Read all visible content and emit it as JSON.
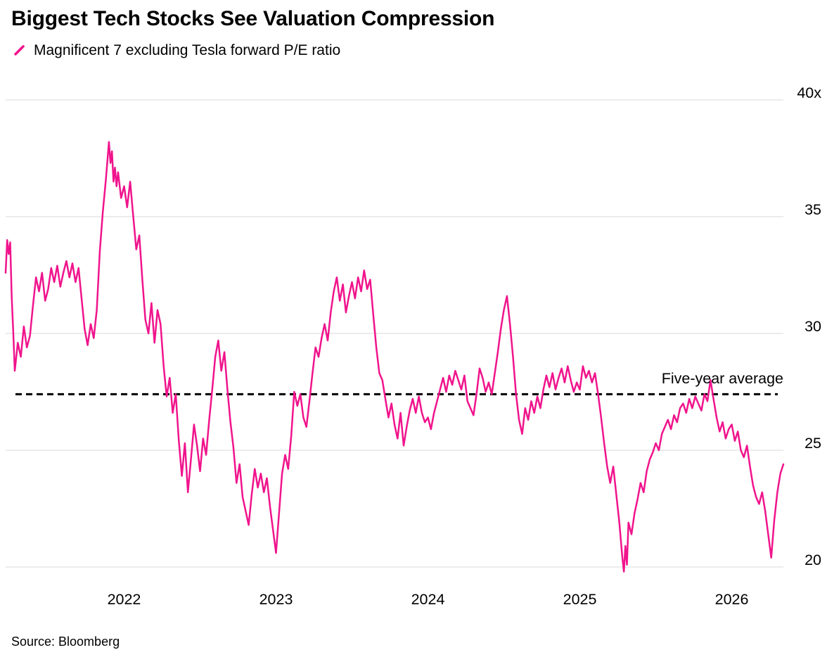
{
  "header": {
    "title": "Biggest Tech Stocks See Valuation Compression"
  },
  "legend": {
    "label": "Magnificent 7 excluding Tesla forward P/E ratio"
  },
  "source": {
    "text": "Source: Bloomberg"
  },
  "colors": {
    "series": "#f0148c",
    "average_line": "#000000",
    "grid": "#d9d9d9",
    "text": "#000000",
    "background": "#ffffff"
  },
  "chart_data": {
    "type": "line",
    "title": "Biggest Tech Stocks See Valuation Compression",
    "series_name": "Magnificent 7 excluding Tesla forward P/E ratio",
    "x_ticks": [
      2022,
      2023,
      2024,
      2025,
      2026
    ],
    "x_tick_labels": [
      "2022",
      "2023",
      "2024",
      "2025",
      "2026"
    ],
    "y_ticks": [
      40,
      35,
      30,
      25,
      20
    ],
    "y_tick_labels": [
      "40x",
      "35",
      "30",
      "25",
      "20"
    ],
    "x_range": [
      2021.22,
      2026.34
    ],
    "ylim": [
      20,
      40
    ],
    "grid": "horizontal",
    "legend_position": "top-left",
    "average_line": {
      "label": "Five-year average",
      "value": 27.4,
      "style": "dashed"
    },
    "points": [
      [
        2021.22,
        32.6
      ],
      [
        2021.23,
        34.0
      ],
      [
        2021.24,
        33.4
      ],
      [
        2021.25,
        33.9
      ],
      [
        2021.26,
        31.6
      ],
      [
        2021.27,
        30.1
      ],
      [
        2021.28,
        28.4
      ],
      [
        2021.3,
        29.6
      ],
      [
        2021.32,
        29.0
      ],
      [
        2021.34,
        30.3
      ],
      [
        2021.36,
        29.4
      ],
      [
        2021.38,
        29.9
      ],
      [
        2021.4,
        31.2
      ],
      [
        2021.42,
        32.4
      ],
      [
        2021.44,
        31.8
      ],
      [
        2021.46,
        32.6
      ],
      [
        2021.48,
        31.4
      ],
      [
        2021.5,
        31.9
      ],
      [
        2021.52,
        32.8
      ],
      [
        2021.54,
        32.2
      ],
      [
        2021.56,
        32.9
      ],
      [
        2021.58,
        32.0
      ],
      [
        2021.6,
        32.6
      ],
      [
        2021.62,
        33.1
      ],
      [
        2021.64,
        32.4
      ],
      [
        2021.66,
        33.0
      ],
      [
        2021.68,
        32.2
      ],
      [
        2021.7,
        32.8
      ],
      [
        2021.72,
        31.5
      ],
      [
        2021.74,
        30.2
      ],
      [
        2021.76,
        29.5
      ],
      [
        2021.78,
        30.4
      ],
      [
        2021.8,
        29.8
      ],
      [
        2021.82,
        31.0
      ],
      [
        2021.84,
        33.5
      ],
      [
        2021.86,
        35.2
      ],
      [
        2021.88,
        36.6
      ],
      [
        2021.9,
        38.2
      ],
      [
        2021.91,
        37.3
      ],
      [
        2021.92,
        37.8
      ],
      [
        2021.93,
        36.5
      ],
      [
        2021.94,
        37.1
      ],
      [
        2021.95,
        36.3
      ],
      [
        2021.96,
        36.9
      ],
      [
        2021.98,
        35.8
      ],
      [
        2022.0,
        36.3
      ],
      [
        2022.02,
        35.4
      ],
      [
        2022.04,
        36.5
      ],
      [
        2022.06,
        35.0
      ],
      [
        2022.08,
        33.6
      ],
      [
        2022.1,
        34.2
      ],
      [
        2022.12,
        32.3
      ],
      [
        2022.14,
        30.6
      ],
      [
        2022.16,
        30.0
      ],
      [
        2022.18,
        31.3
      ],
      [
        2022.2,
        29.6
      ],
      [
        2022.22,
        31.0
      ],
      [
        2022.24,
        30.4
      ],
      [
        2022.26,
        28.6
      ],
      [
        2022.28,
        27.3
      ],
      [
        2022.3,
        28.1
      ],
      [
        2022.32,
        26.6
      ],
      [
        2022.34,
        27.4
      ],
      [
        2022.36,
        25.4
      ],
      [
        2022.38,
        23.9
      ],
      [
        2022.4,
        25.3
      ],
      [
        2022.42,
        23.2
      ],
      [
        2022.44,
        24.6
      ],
      [
        2022.46,
        26.1
      ],
      [
        2022.48,
        25.2
      ],
      [
        2022.5,
        24.1
      ],
      [
        2022.52,
        25.5
      ],
      [
        2022.54,
        24.8
      ],
      [
        2022.56,
        26.3
      ],
      [
        2022.58,
        27.6
      ],
      [
        2022.6,
        29.0
      ],
      [
        2022.62,
        29.7
      ],
      [
        2022.64,
        28.4
      ],
      [
        2022.66,
        29.2
      ],
      [
        2022.68,
        27.6
      ],
      [
        2022.7,
        26.2
      ],
      [
        2022.72,
        25.1
      ],
      [
        2022.74,
        23.6
      ],
      [
        2022.76,
        24.4
      ],
      [
        2022.78,
        23.0
      ],
      [
        2022.8,
        22.4
      ],
      [
        2022.82,
        21.8
      ],
      [
        2022.84,
        23.1
      ],
      [
        2022.86,
        24.2
      ],
      [
        2022.88,
        23.4
      ],
      [
        2022.9,
        24.0
      ],
      [
        2022.92,
        23.2
      ],
      [
        2022.94,
        23.8
      ],
      [
        2022.96,
        22.6
      ],
      [
        2022.98,
        21.6
      ],
      [
        2023.0,
        20.6
      ],
      [
        2023.02,
        22.3
      ],
      [
        2023.04,
        24.0
      ],
      [
        2023.06,
        24.8
      ],
      [
        2023.08,
        24.2
      ],
      [
        2023.1,
        25.6
      ],
      [
        2023.12,
        27.5
      ],
      [
        2023.14,
        26.9
      ],
      [
        2023.16,
        27.4
      ],
      [
        2023.18,
        26.4
      ],
      [
        2023.2,
        26.0
      ],
      [
        2023.22,
        27.1
      ],
      [
        2023.24,
        28.3
      ],
      [
        2023.26,
        29.4
      ],
      [
        2023.28,
        29.0
      ],
      [
        2023.3,
        29.8
      ],
      [
        2023.32,
        30.4
      ],
      [
        2023.34,
        29.7
      ],
      [
        2023.36,
        30.9
      ],
      [
        2023.38,
        31.8
      ],
      [
        2023.4,
        32.4
      ],
      [
        2023.42,
        31.4
      ],
      [
        2023.44,
        32.1
      ],
      [
        2023.46,
        30.9
      ],
      [
        2023.48,
        31.6
      ],
      [
        2023.5,
        32.2
      ],
      [
        2023.52,
        31.5
      ],
      [
        2023.54,
        32.4
      ],
      [
        2023.56,
        31.8
      ],
      [
        2023.58,
        32.7
      ],
      [
        2023.6,
        31.9
      ],
      [
        2023.62,
        32.3
      ],
      [
        2023.64,
        30.8
      ],
      [
        2023.66,
        29.4
      ],
      [
        2023.68,
        28.3
      ],
      [
        2023.7,
        28.0
      ],
      [
        2023.72,
        27.2
      ],
      [
        2023.74,
        26.4
      ],
      [
        2023.76,
        27.0
      ],
      [
        2023.78,
        26.1
      ],
      [
        2023.8,
        25.5
      ],
      [
        2023.82,
        26.6
      ],
      [
        2023.84,
        25.2
      ],
      [
        2023.86,
        26.0
      ],
      [
        2023.88,
        26.7
      ],
      [
        2023.9,
        27.2
      ],
      [
        2023.92,
        26.6
      ],
      [
        2023.94,
        27.3
      ],
      [
        2023.96,
        26.6
      ],
      [
        2023.98,
        26.2
      ],
      [
        2024.0,
        26.4
      ],
      [
        2024.02,
        25.9
      ],
      [
        2024.04,
        26.6
      ],
      [
        2024.06,
        27.1
      ],
      [
        2024.08,
        27.6
      ],
      [
        2024.1,
        28.1
      ],
      [
        2024.12,
        27.5
      ],
      [
        2024.14,
        28.2
      ],
      [
        2024.16,
        27.8
      ],
      [
        2024.18,
        28.4
      ],
      [
        2024.2,
        28.0
      ],
      [
        2024.22,
        27.6
      ],
      [
        2024.24,
        28.2
      ],
      [
        2024.26,
        27.1
      ],
      [
        2024.28,
        26.8
      ],
      [
        2024.3,
        26.5
      ],
      [
        2024.32,
        27.4
      ],
      [
        2024.34,
        28.5
      ],
      [
        2024.36,
        28.1
      ],
      [
        2024.38,
        27.5
      ],
      [
        2024.4,
        27.9
      ],
      [
        2024.42,
        27.4
      ],
      [
        2024.44,
        28.3
      ],
      [
        2024.46,
        29.2
      ],
      [
        2024.48,
        30.2
      ],
      [
        2024.5,
        31.0
      ],
      [
        2024.52,
        31.6
      ],
      [
        2024.54,
        30.4
      ],
      [
        2024.56,
        29.0
      ],
      [
        2024.58,
        27.4
      ],
      [
        2024.6,
        26.3
      ],
      [
        2024.62,
        25.7
      ],
      [
        2024.64,
        26.8
      ],
      [
        2024.66,
        26.3
      ],
      [
        2024.68,
        27.1
      ],
      [
        2024.7,
        26.6
      ],
      [
        2024.72,
        27.3
      ],
      [
        2024.74,
        26.8
      ],
      [
        2024.76,
        27.6
      ],
      [
        2024.78,
        28.2
      ],
      [
        2024.8,
        27.7
      ],
      [
        2024.82,
        28.3
      ],
      [
        2024.84,
        27.6
      ],
      [
        2024.86,
        28.1
      ],
      [
        2024.88,
        28.5
      ],
      [
        2024.9,
        27.9
      ],
      [
        2024.92,
        28.6
      ],
      [
        2024.94,
        28.0
      ],
      [
        2024.96,
        27.5
      ],
      [
        2024.98,
        27.9
      ],
      [
        2025.0,
        27.6
      ],
      [
        2025.02,
        28.6
      ],
      [
        2025.04,
        28.1
      ],
      [
        2025.06,
        28.4
      ],
      [
        2025.08,
        27.9
      ],
      [
        2025.1,
        28.3
      ],
      [
        2025.12,
        27.4
      ],
      [
        2025.14,
        26.4
      ],
      [
        2025.16,
        25.3
      ],
      [
        2025.18,
        24.3
      ],
      [
        2025.2,
        23.6
      ],
      [
        2025.22,
        24.3
      ],
      [
        2025.24,
        23.1
      ],
      [
        2025.26,
        21.9
      ],
      [
        2025.28,
        20.4
      ],
      [
        2025.29,
        19.8
      ],
      [
        2025.3,
        20.9
      ],
      [
        2025.31,
        20.1
      ],
      [
        2025.32,
        21.9
      ],
      [
        2025.34,
        21.4
      ],
      [
        2025.36,
        22.3
      ],
      [
        2025.38,
        22.9
      ],
      [
        2025.4,
        23.6
      ],
      [
        2025.42,
        23.2
      ],
      [
        2025.44,
        24.1
      ],
      [
        2025.46,
        24.6
      ],
      [
        2025.48,
        24.9
      ],
      [
        2025.5,
        25.3
      ],
      [
        2025.52,
        25.0
      ],
      [
        2025.54,
        25.7
      ],
      [
        2025.56,
        26.0
      ],
      [
        2025.58,
        26.3
      ],
      [
        2025.6,
        25.9
      ],
      [
        2025.62,
        26.5
      ],
      [
        2025.64,
        26.2
      ],
      [
        2025.66,
        26.8
      ],
      [
        2025.68,
        27.0
      ],
      [
        2025.7,
        26.6
      ],
      [
        2025.72,
        27.2
      ],
      [
        2025.74,
        26.8
      ],
      [
        2025.76,
        27.3
      ],
      [
        2025.78,
        27.0
      ],
      [
        2025.8,
        26.7
      ],
      [
        2025.82,
        27.4
      ],
      [
        2025.84,
        27.1
      ],
      [
        2025.86,
        28.0
      ],
      [
        2025.88,
        27.2
      ],
      [
        2025.9,
        26.4
      ],
      [
        2025.92,
        25.8
      ],
      [
        2025.94,
        26.2
      ],
      [
        2025.96,
        25.5
      ],
      [
        2025.98,
        25.9
      ],
      [
        2026.0,
        26.1
      ],
      [
        2026.02,
        25.4
      ],
      [
        2026.04,
        25.8
      ],
      [
        2026.06,
        25.0
      ],
      [
        2026.08,
        24.7
      ],
      [
        2026.1,
        25.2
      ],
      [
        2026.12,
        24.3
      ],
      [
        2026.14,
        23.5
      ],
      [
        2026.16,
        23.0
      ],
      [
        2026.18,
        22.7
      ],
      [
        2026.2,
        23.2
      ],
      [
        2026.22,
        22.4
      ],
      [
        2026.24,
        21.4
      ],
      [
        2026.26,
        20.4
      ],
      [
        2026.28,
        22.0
      ],
      [
        2026.3,
        23.2
      ],
      [
        2026.32,
        24.0
      ],
      [
        2026.34,
        24.4
      ]
    ]
  }
}
